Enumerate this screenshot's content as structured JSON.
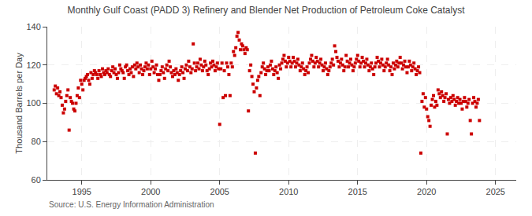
{
  "chart_data": {
    "type": "scatter",
    "title": "Monthly Gulf Coast (PADD 3) Refinery and Blender Net Production of Petroleum Coke Catalyst",
    "ylabel": "Thousand Barrels per Day",
    "annotations": [
      "Source: U.S. Energy Information Administration"
    ],
    "xlim": [
      1992.5,
      2026.5
    ],
    "xticks": [
      1995,
      2000,
      2005,
      2010,
      2015,
      2020,
      2025
    ],
    "ylim": [
      60,
      140
    ],
    "yticks": [
      60,
      80,
      100,
      120,
      140
    ],
    "grid": true,
    "color": "#CC0000",
    "marker": "square",
    "x": [
      1993.0,
      1993.083,
      1993.167,
      1993.25,
      1993.333,
      1993.417,
      1993.5,
      1993.583,
      1993.667,
      1993.75,
      1993.833,
      1993.917,
      1994.0,
      1994.083,
      1994.167,
      1994.25,
      1994.333,
      1994.417,
      1994.5,
      1994.583,
      1994.667,
      1994.75,
      1994.833,
      1994.917,
      1995.0,
      1995.083,
      1995.167,
      1995.25,
      1995.333,
      1995.417,
      1995.5,
      1995.583,
      1995.667,
      1995.75,
      1995.833,
      1995.917,
      1996.0,
      1996.083,
      1996.167,
      1996.25,
      1996.333,
      1996.417,
      1996.5,
      1996.583,
      1996.667,
      1996.75,
      1996.833,
      1996.917,
      1997.0,
      1997.083,
      1997.167,
      1997.25,
      1997.333,
      1997.417,
      1997.5,
      1997.583,
      1997.667,
      1997.75,
      1997.833,
      1997.917,
      1998.0,
      1998.083,
      1998.167,
      1998.25,
      1998.333,
      1998.417,
      1998.5,
      1998.583,
      1998.667,
      1998.75,
      1998.833,
      1998.917,
      1999.0,
      1999.083,
      1999.167,
      1999.25,
      1999.333,
      1999.417,
      1999.5,
      1999.583,
      1999.667,
      1999.75,
      1999.833,
      1999.917,
      2000.0,
      2000.083,
      2000.167,
      2000.25,
      2000.333,
      2000.417,
      2000.5,
      2000.583,
      2000.667,
      2000.75,
      2000.833,
      2000.917,
      2001.0,
      2001.083,
      2001.167,
      2001.25,
      2001.333,
      2001.417,
      2001.5,
      2001.583,
      2001.667,
      2001.75,
      2001.833,
      2001.917,
      2002.0,
      2002.083,
      2002.167,
      2002.25,
      2002.333,
      2002.417,
      2002.5,
      2002.583,
      2002.667,
      2002.75,
      2002.833,
      2002.917,
      2003.0,
      2003.083,
      2003.167,
      2003.25,
      2003.333,
      2003.417,
      2003.5,
      2003.583,
      2003.667,
      2003.75,
      2003.833,
      2003.917,
      2004.0,
      2004.083,
      2004.167,
      2004.25,
      2004.333,
      2004.417,
      2004.5,
      2004.583,
      2004.667,
      2004.75,
      2004.833,
      2004.917,
      2005.0,
      2005.083,
      2005.167,
      2005.25,
      2005.333,
      2005.417,
      2005.5,
      2005.583,
      2005.667,
      2005.75,
      2005.833,
      2005.917,
      2006.0,
      2006.083,
      2006.167,
      2006.25,
      2006.333,
      2006.417,
      2006.5,
      2006.583,
      2006.667,
      2006.75,
      2006.833,
      2006.917,
      2007.0,
      2007.083,
      2007.167,
      2007.25,
      2007.333,
      2007.417,
      2007.5,
      2007.583,
      2007.667,
      2007.75,
      2007.833,
      2007.917,
      2008.0,
      2008.083,
      2008.167,
      2008.25,
      2008.333,
      2008.417,
      2008.5,
      2008.583,
      2008.667,
      2008.75,
      2008.833,
      2008.917,
      2009.0,
      2009.083,
      2009.167,
      2009.25,
      2009.333,
      2009.417,
      2009.5,
      2009.583,
      2009.667,
      2009.75,
      2009.833,
      2009.917,
      2010.0,
      2010.083,
      2010.167,
      2010.25,
      2010.333,
      2010.417,
      2010.5,
      2010.583,
      2010.667,
      2010.75,
      2010.833,
      2010.917,
      2011.0,
      2011.083,
      2011.167,
      2011.25,
      2011.333,
      2011.417,
      2011.5,
      2011.583,
      2011.667,
      2011.75,
      2011.833,
      2011.917,
      2012.0,
      2012.083,
      2012.167,
      2012.25,
      2012.333,
      2012.417,
      2012.5,
      2012.583,
      2012.667,
      2012.75,
      2012.833,
      2012.917,
      2013.0,
      2013.083,
      2013.167,
      2013.25,
      2013.333,
      2013.417,
      2013.5,
      2013.583,
      2013.667,
      2013.75,
      2013.833,
      2013.917,
      2014.0,
      2014.083,
      2014.167,
      2014.25,
      2014.333,
      2014.417,
      2014.5,
      2014.583,
      2014.667,
      2014.75,
      2014.833,
      2014.917,
      2015.0,
      2015.083,
      2015.167,
      2015.25,
      2015.333,
      2015.417,
      2015.5,
      2015.583,
      2015.667,
      2015.75,
      2015.833,
      2015.917,
      2016.0,
      2016.083,
      2016.167,
      2016.25,
      2016.333,
      2016.417,
      2016.5,
      2016.583,
      2016.667,
      2016.75,
      2016.833,
      2016.917,
      2017.0,
      2017.083,
      2017.167,
      2017.25,
      2017.333,
      2017.417,
      2017.5,
      2017.583,
      2017.667,
      2017.75,
      2017.833,
      2017.917,
      2018.0,
      2018.083,
      2018.167,
      2018.25,
      2018.333,
      2018.417,
      2018.5,
      2018.583,
      2018.667,
      2018.75,
      2018.833,
      2018.917,
      2019.0,
      2019.083,
      2019.167,
      2019.25,
      2019.333,
      2019.417,
      2019.5,
      2019.583,
      2019.667,
      2019.75,
      2019.833,
      2019.917,
      2020.0,
      2020.083,
      2020.167,
      2020.25,
      2020.333,
      2020.417,
      2020.5,
      2020.583,
      2020.667,
      2020.75,
      2020.833,
      2020.917,
      2021.0,
      2021.083,
      2021.167,
      2021.25,
      2021.333,
      2021.417,
      2021.5,
      2021.583,
      2021.667,
      2021.75,
      2021.833,
      2021.917,
      2022.0,
      2022.083,
      2022.167,
      2022.25,
      2022.333,
      2022.417,
      2022.5,
      2022.583,
      2022.667,
      2022.75,
      2022.833,
      2022.917,
      2023.0,
      2023.083,
      2023.167,
      2023.25,
      2023.333,
      2023.417,
      2023.5,
      2023.583,
      2023.667,
      2023.75,
      2023.833
    ],
    "values": [
      107,
      109,
      105,
      108,
      104,
      106,
      103,
      99,
      95,
      97,
      101,
      104,
      107,
      86,
      103,
      101,
      100,
      97,
      96,
      100,
      104,
      108,
      103,
      112,
      110,
      107,
      112,
      113,
      114,
      115,
      112,
      110,
      116,
      113,
      115,
      117,
      116,
      115,
      113,
      117,
      115,
      114,
      118,
      116,
      115,
      117,
      116,
      118,
      115,
      114,
      117,
      119,
      116,
      118,
      115,
      113,
      116,
      120,
      118,
      117,
      116,
      113,
      119,
      120,
      117,
      115,
      118,
      116,
      119,
      114,
      120,
      118,
      121,
      119,
      116,
      120,
      118,
      115,
      117,
      119,
      121,
      118,
      120,
      115,
      118,
      122,
      119,
      116,
      118,
      120,
      115,
      112,
      115,
      117,
      119,
      116,
      113,
      118,
      120,
      117,
      122,
      119,
      116,
      114,
      117,
      115,
      118,
      116,
      112,
      115,
      117,
      119,
      116,
      113,
      118,
      120,
      117,
      122,
      119,
      116,
      118,
      131,
      121,
      117,
      119,
      121,
      118,
      123,
      120,
      117,
      119,
      122,
      120,
      117,
      115,
      118,
      121,
      119,
      122,
      120,
      117,
      119,
      121,
      118,
      89,
      118,
      121,
      103,
      117,
      104,
      121,
      119,
      115,
      104,
      121,
      119,
      127,
      125,
      129,
      135,
      137,
      133,
      128,
      131,
      130,
      128,
      126,
      129,
      128,
      96,
      117,
      120,
      114,
      110,
      106,
      74,
      108,
      112,
      114,
      104,
      116,
      119,
      121,
      118,
      115,
      117,
      119,
      117,
      120,
      122,
      118,
      115,
      117,
      119,
      116,
      113,
      120,
      118,
      121,
      123,
      125,
      122,
      119,
      121,
      124,
      122,
      119,
      121,
      124,
      122,
      119,
      121,
      123,
      120,
      117,
      119,
      121,
      118,
      115,
      117,
      119,
      116,
      121,
      123,
      125,
      122,
      119,
      121,
      124,
      122,
      119,
      121,
      123,
      120,
      117,
      119,
      121,
      118,
      115,
      117,
      119,
      121,
      123,
      120,
      130,
      127,
      124,
      122,
      119,
      121,
      123,
      120,
      117,
      119,
      125,
      122,
      119,
      121,
      123,
      120,
      117,
      119,
      121,
      123,
      125,
      122,
      119,
      121,
      124,
      122,
      119,
      121,
      123,
      120,
      117,
      119,
      121,
      118,
      115,
      119,
      121,
      124,
      122,
      119,
      121,
      123,
      120,
      117,
      119,
      121,
      123,
      120,
      117,
      119,
      115,
      121,
      118,
      120,
      122,
      119,
      121,
      124,
      121,
      118,
      120,
      122,
      119,
      116,
      119,
      122,
      120,
      117,
      119,
      121,
      118,
      115,
      117,
      119,
      116,
      74,
      101,
      105,
      98,
      103,
      97,
      93,
      91,
      88,
      99,
      102,
      104,
      98,
      101,
      99,
      107,
      105,
      103,
      106,
      104,
      101,
      103,
      105,
      84,
      102,
      100,
      103,
      101,
      104,
      102,
      99,
      101,
      103,
      100,
      102,
      100,
      97,
      101,
      103,
      101,
      98,
      100,
      102,
      91,
      84,
      100,
      103,
      101,
      98,
      100,
      102,
      91
    ]
  }
}
